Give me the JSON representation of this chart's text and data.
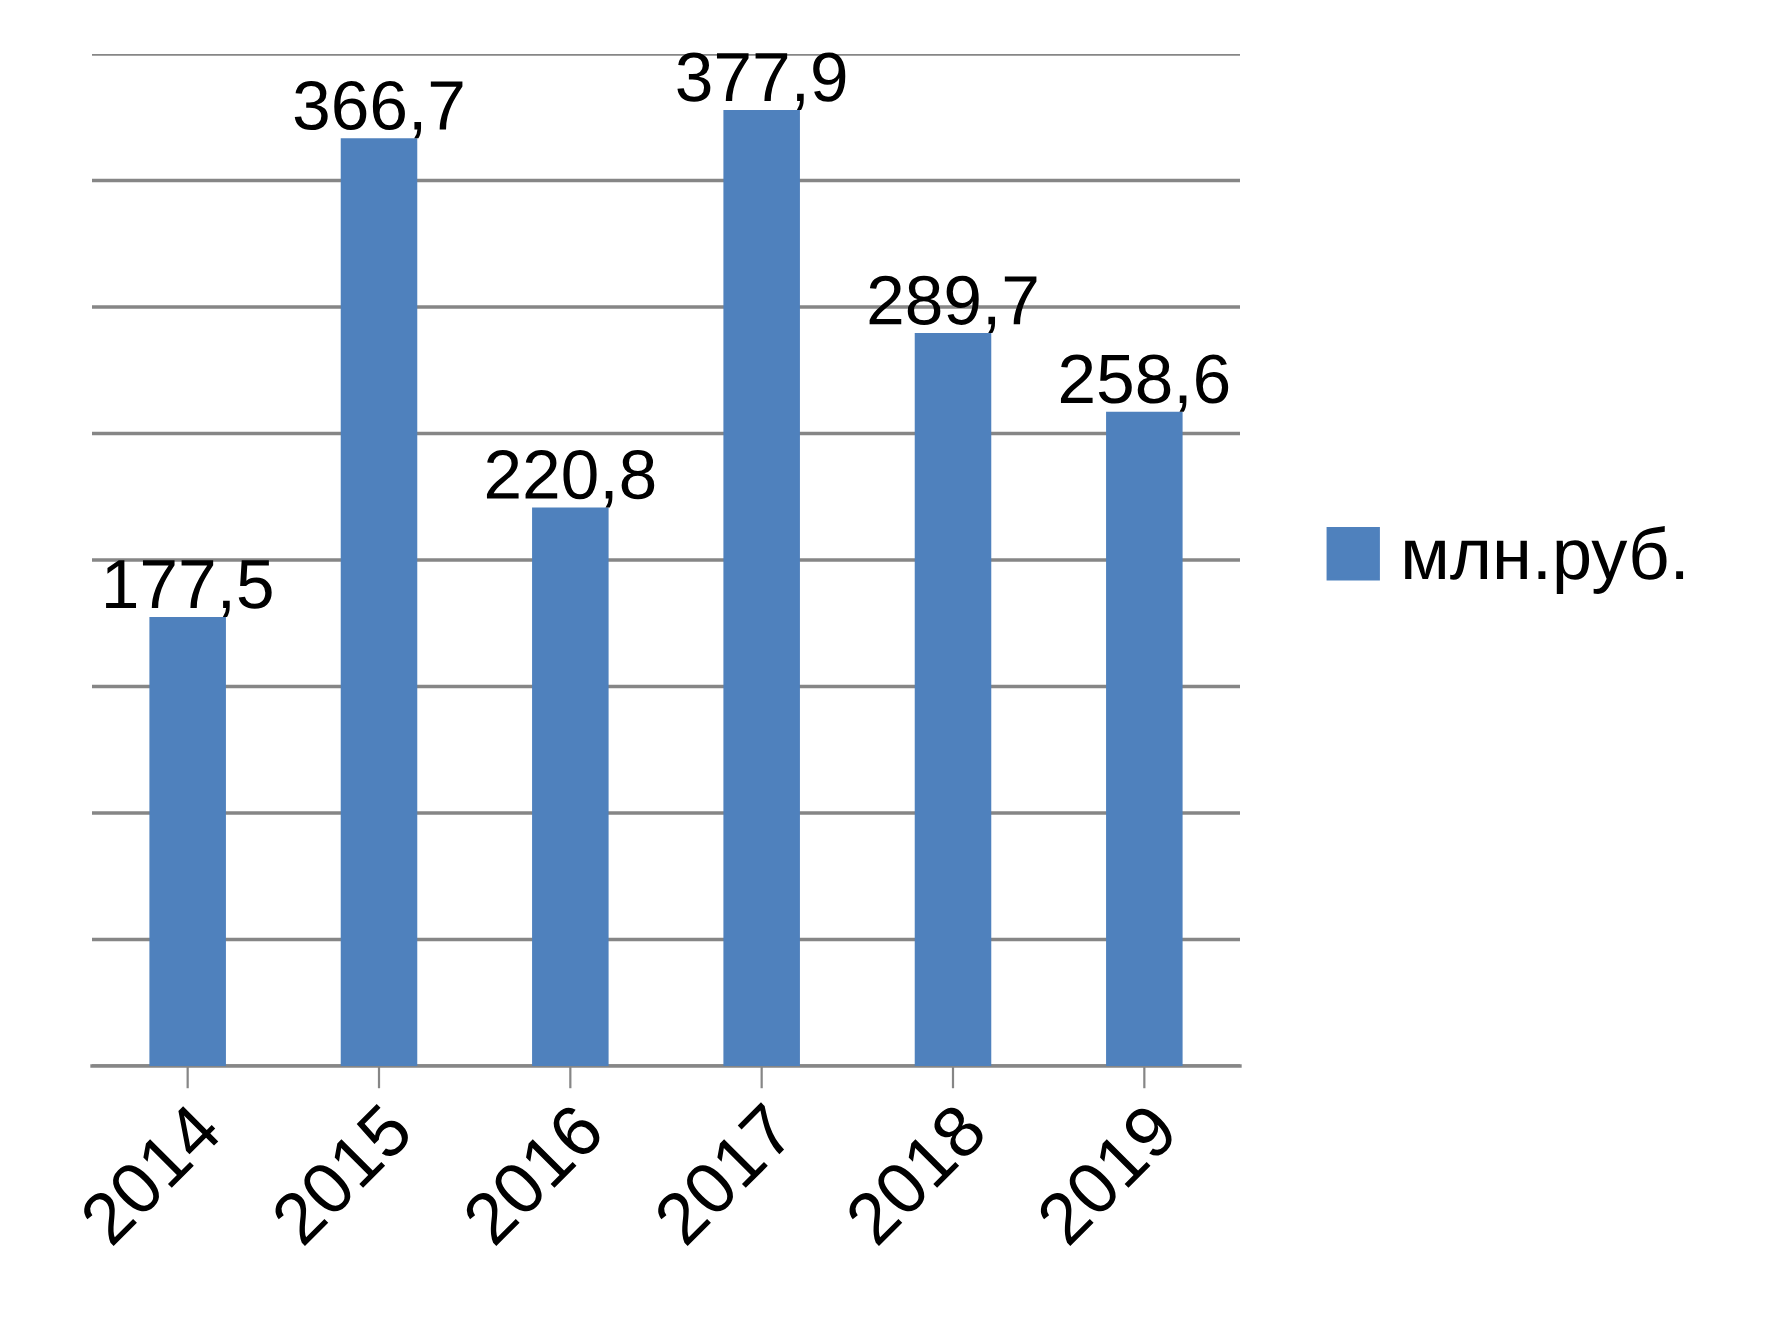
{
  "chart_data": {
    "type": "bar",
    "categories": [
      "2014",
      "2015",
      "2016",
      "2017",
      "2018",
      "2019"
    ],
    "series": [
      {
        "name": "млн.руб.",
        "color": "#4f81bd",
        "values": [
          177.5,
          366.7,
          220.8,
          377.9,
          289.7,
          258.6
        ],
        "value_labels": [
          "177,5",
          "366,7",
          "220,8",
          "377,9",
          "289,7",
          "258,6"
        ]
      }
    ],
    "ylim": [
      0,
      400
    ],
    "yticks": [
      {
        "value": 0,
        "label": null
      },
      {
        "value": 50,
        "label": null
      },
      {
        "value": 100,
        "label": null
      },
      {
        "value": 150,
        "label": null
      },
      {
        "value": 200,
        "label": null
      },
      {
        "value": 250,
        "label": null
      },
      {
        "value": 300,
        "label": null
      },
      {
        "value": 350,
        "label": null
      },
      {
        "value": 400,
        "label": null
      }
    ],
    "tick_labels": "x",
    "grid": "y",
    "legend": "right"
  }
}
